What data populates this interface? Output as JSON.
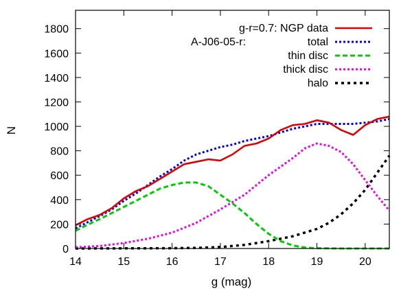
{
  "chart_data": {
    "type": "line",
    "xlabel": "g (mag)",
    "ylabel": "N",
    "xlim": [
      14,
      20.5
    ],
    "ylim": [
      0,
      1950
    ],
    "x_ticks": [
      14,
      15,
      16,
      17,
      18,
      19,
      20
    ],
    "y_ticks": [
      0,
      200,
      400,
      600,
      800,
      1000,
      1200,
      1400,
      1600,
      1800
    ],
    "grid": false,
    "legend_position": "top-right",
    "legend_title": "A-J06-05-r:",
    "series": [
      {
        "name": "g-r=0.7: NGP data",
        "color": "#e00000",
        "dash": "solid",
        "x": [
          14.0,
          14.25,
          14.5,
          14.75,
          15.0,
          15.25,
          15.5,
          15.75,
          16.0,
          16.25,
          16.5,
          16.75,
          17.0,
          17.25,
          17.5,
          17.75,
          18.0,
          18.25,
          18.5,
          18.75,
          19.0,
          19.25,
          19.5,
          19.75,
          20.0,
          20.25,
          20.5
        ],
        "values": [
          190,
          240,
          275,
          330,
          410,
          470,
          510,
          570,
          630,
          690,
          710,
          730,
          720,
          770,
          840,
          860,
          900,
          970,
          1010,
          1020,
          1050,
          1030,
          970,
          930,
          1010,
          1060,
          1080
        ]
      },
      {
        "name": "total",
        "color": "#0000dd",
        "dash": "dotted",
        "x": [
          14.0,
          14.25,
          14.5,
          14.75,
          15.0,
          15.25,
          15.5,
          15.75,
          16.0,
          16.25,
          16.5,
          16.75,
          17.0,
          17.25,
          17.5,
          17.75,
          18.0,
          18.25,
          18.5,
          18.75,
          19.0,
          19.25,
          19.5,
          19.75,
          20.0,
          20.25,
          20.5
        ],
        "values": [
          165,
          215,
          265,
          320,
          390,
          450,
          520,
          590,
          650,
          720,
          770,
          800,
          830,
          850,
          880,
          900,
          920,
          950,
          980,
          1000,
          1020,
          1020,
          1020,
          1020,
          1030,
          1040,
          1060
        ]
      },
      {
        "name": "thin disc",
        "color": "#00cc00",
        "dash": "dashed",
        "x": [
          14.0,
          14.25,
          14.5,
          14.75,
          15.0,
          15.25,
          15.5,
          15.75,
          16.0,
          16.25,
          16.5,
          16.75,
          17.0,
          17.25,
          17.5,
          17.75,
          18.0,
          18.25,
          18.5,
          18.75,
          19.0,
          19.5,
          20.0,
          20.5
        ],
        "values": [
          145,
          195,
          240,
          290,
          340,
          390,
          440,
          490,
          520,
          540,
          540,
          510,
          440,
          370,
          290,
          200,
          120,
          60,
          25,
          8,
          2,
          0,
          0,
          0
        ]
      },
      {
        "name": "thick disc",
        "color": "#ee00ee",
        "dash": "dotted",
        "x": [
          14.0,
          14.5,
          15.0,
          15.5,
          16.0,
          16.5,
          17.0,
          17.5,
          18.0,
          18.5,
          18.75,
          19.0,
          19.25,
          19.5,
          19.75,
          20.0,
          20.25,
          20.5
        ],
        "values": [
          10,
          20,
          45,
          80,
          130,
          210,
          320,
          440,
          600,
          740,
          820,
          860,
          840,
          790,
          690,
          560,
          430,
          310
        ]
      },
      {
        "name": "halo",
        "color": "#000000",
        "dash": "dotted-heavy",
        "x": [
          14.0,
          15.0,
          16.0,
          16.5,
          17.0,
          17.5,
          18.0,
          18.5,
          19.0,
          19.25,
          19.5,
          19.75,
          20.0,
          20.25,
          20.5
        ],
        "values": [
          0,
          1,
          2,
          5,
          12,
          30,
          60,
          100,
          160,
          210,
          280,
          370,
          480,
          620,
          760
        ]
      }
    ]
  }
}
